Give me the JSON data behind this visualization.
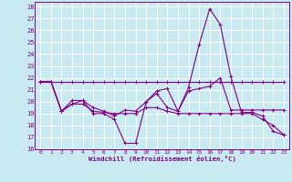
{
  "xlabel": "Windchill (Refroidissement éolien,°C)",
  "background_color": "#c8eaf0",
  "grid_color": "#ffffff",
  "line_color": "#800080",
  "xlim": [
    -0.5,
    23.5
  ],
  "ylim": [
    16,
    28.4
  ],
  "yticks": [
    16,
    17,
    18,
    19,
    20,
    21,
    22,
    23,
    24,
    25,
    26,
    27,
    28
  ],
  "xticks": [
    0,
    1,
    2,
    3,
    4,
    5,
    6,
    7,
    8,
    9,
    10,
    11,
    12,
    13,
    14,
    15,
    16,
    17,
    18,
    19,
    20,
    21,
    22,
    23
  ],
  "series": [
    {
      "x": [
        0,
        1,
        2,
        3,
        4,
        5,
        6,
        7,
        8,
        9,
        10,
        11,
        12,
        13,
        14,
        15,
        16,
        17,
        18,
        19,
        20,
        21,
        22,
        23
      ],
      "y": [
        21.7,
        21.7,
        21.7,
        21.7,
        21.7,
        21.7,
        21.7,
        21.7,
        21.7,
        21.7,
        21.7,
        21.7,
        21.7,
        21.7,
        21.7,
        21.7,
        21.7,
        21.7,
        21.7,
        21.7,
        21.7,
        21.7,
        21.7,
        21.7
      ]
    },
    {
      "x": [
        0,
        1,
        2,
        3,
        4,
        5,
        6,
        7,
        8,
        9,
        10,
        11,
        12,
        13,
        14,
        15,
        16,
        17,
        18,
        19,
        20,
        21,
        22,
        23
      ],
      "y": [
        21.7,
        21.7,
        19.2,
        19.8,
        20.1,
        19.5,
        19.2,
        18.8,
        19.3,
        19.2,
        20.0,
        20.7,
        19.5,
        19.2,
        20.9,
        21.1,
        21.3,
        22.0,
        19.3,
        19.3,
        19.3,
        19.3,
        19.3,
        19.3
      ]
    },
    {
      "x": [
        0,
        1,
        2,
        3,
        4,
        5,
        6,
        7,
        8,
        9,
        10,
        11,
        12,
        13,
        14,
        15,
        16,
        17,
        18,
        19,
        20,
        21,
        22,
        23
      ],
      "y": [
        21.7,
        21.7,
        19.2,
        20.1,
        20.1,
        19.0,
        19.0,
        18.5,
        16.5,
        16.5,
        20.0,
        20.9,
        21.1,
        19.2,
        21.2,
        24.8,
        27.8,
        26.5,
        22.1,
        19.1,
        19.1,
        18.8,
        17.5,
        17.2
      ]
    },
    {
      "x": [
        0,
        1,
        2,
        3,
        4,
        5,
        6,
        7,
        8,
        9,
        10,
        11,
        12,
        13,
        14,
        15,
        16,
        17,
        18,
        19,
        20,
        21,
        22,
        23
      ],
      "y": [
        21.7,
        21.7,
        19.2,
        19.8,
        19.8,
        19.2,
        19.1,
        19.0,
        19.0,
        19.0,
        19.5,
        19.5,
        19.2,
        19.0,
        19.0,
        19.0,
        19.0,
        19.0,
        19.0,
        19.0,
        19.0,
        18.5,
        18.0,
        17.2
      ]
    }
  ]
}
